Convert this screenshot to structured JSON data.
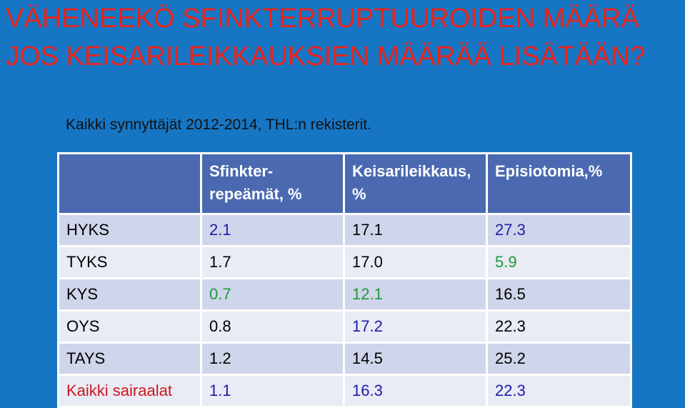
{
  "title": {
    "lines": [
      "VÄHENEEKÖ SFINKTERRUPTUUROIDEN MÄÄRÄ",
      "JOS KEISARILEIKKAUKSIEN MÄÄRÄÄ LISÄTÄÄN?"
    ],
    "color": "#e8231c"
  },
  "subtitle": "Kaikki synnyttäjät 2012-2014, THL:n rekisterit.",
  "table": {
    "header": [
      [],
      [
        "Sfinkter-",
        "repeämät, %"
      ],
      [
        "Keisarileikkaus,",
        "%"
      ],
      [
        "Episiotomia,%"
      ]
    ],
    "rows": [
      {
        "cells": [
          "HYKS",
          "2.1",
          "17.1",
          "27.3"
        ],
        "colors": [
          "#000000",
          "#1c1ca8",
          "#000000",
          "#1c1ca8"
        ]
      },
      {
        "cells": [
          "TYKS",
          "1.7",
          "17.0",
          "5.9"
        ],
        "colors": [
          "#000000",
          "#000000",
          "#000000",
          "#1f9a3c"
        ]
      },
      {
        "cells": [
          "KYS",
          "0.7",
          "12.1",
          "16.5"
        ],
        "colors": [
          "#000000",
          "#1f9a3c",
          "#1f9a3c",
          "#000000"
        ]
      },
      {
        "cells": [
          "OYS",
          "0.8",
          "17.2",
          "22.3"
        ],
        "colors": [
          "#000000",
          "#000000",
          "#1c1ca8",
          "#000000"
        ]
      },
      {
        "cells": [
          "TAYS",
          "1.2",
          "14.5",
          "25.2"
        ],
        "colors": [
          "#000000",
          "#000000",
          "#000000",
          "#000000"
        ]
      },
      {
        "cells": [
          "Kaikki sairaalat",
          "1.1",
          "16.3",
          "22.3"
        ],
        "colors": [
          "#d0161c",
          "#1c1ca8",
          "#1c1ca8",
          "#1c1ca8"
        ]
      }
    ]
  }
}
